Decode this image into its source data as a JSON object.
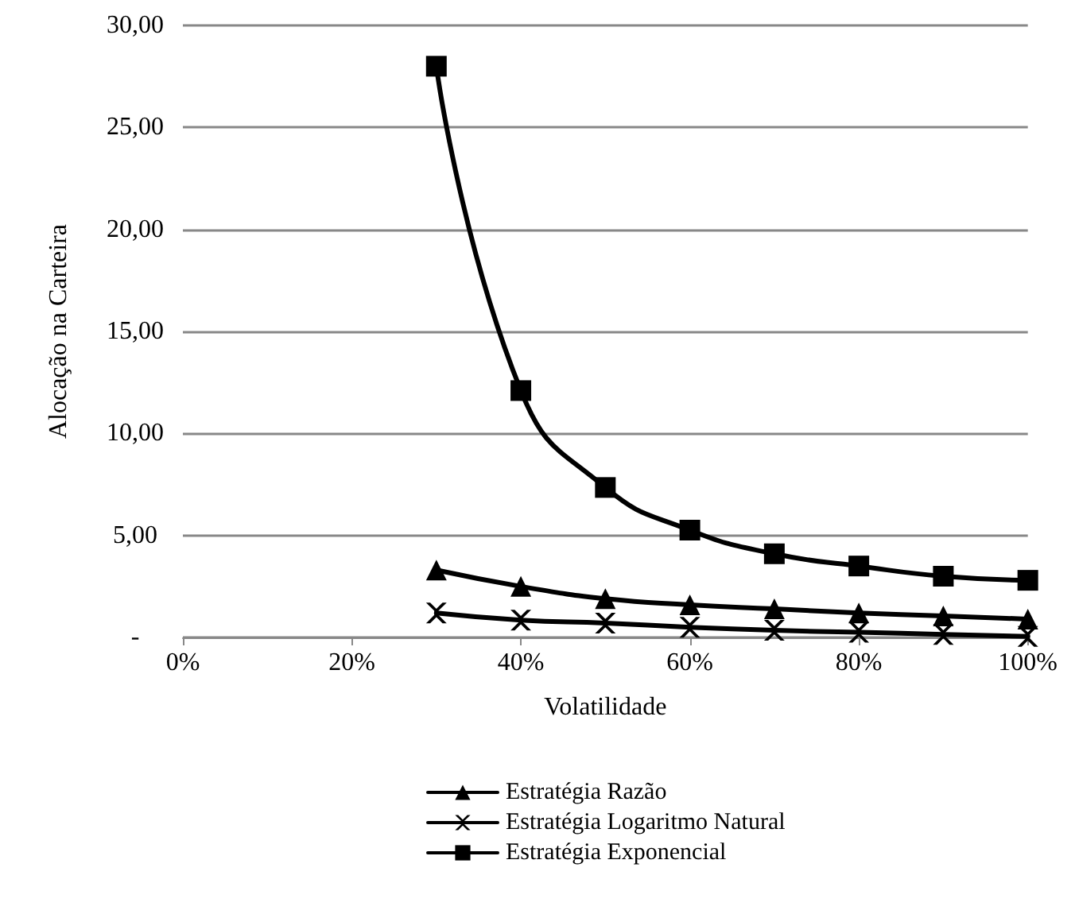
{
  "chart_data": {
    "type": "line",
    "xlabel": "Volatilidade",
    "ylabel": "Alocação na Carteira",
    "x": [
      30,
      40,
      50,
      60,
      70,
      80,
      90,
      100
    ],
    "xlim": [
      0,
      100
    ],
    "xticks": [
      {
        "value": 0,
        "label": "0%"
      },
      {
        "value": 20,
        "label": "20%"
      },
      {
        "value": 40,
        "label": "40%"
      },
      {
        "value": 60,
        "label": "60%"
      },
      {
        "value": 80,
        "label": "80%"
      },
      {
        "value": 100,
        "label": "100%"
      }
    ],
    "ylim": [
      0,
      30
    ],
    "yticks": [
      {
        "value": 0,
        "label": "-"
      },
      {
        "value": 5,
        "label": "5,00"
      },
      {
        "value": 10,
        "label": "10,00"
      },
      {
        "value": 15,
        "label": "15,00"
      },
      {
        "value": 20,
        "label": "20,00"
      },
      {
        "value": 25,
        "label": "25,00"
      },
      {
        "value": 30,
        "label": "30,00"
      }
    ],
    "grid": "y",
    "legend": "bottom",
    "line_style": "solid",
    "series": [
      {
        "name": "Estratégia Razão",
        "color": "#000000",
        "marker": "triangle",
        "values": [
          3.3,
          2.5,
          1.9,
          1.6,
          1.4,
          1.2,
          1.05,
          0.9
        ]
      },
      {
        "name": "Estratégia Logaritmo Natural",
        "color": "#000000",
        "marker": "cross",
        "values": [
          1.2,
          0.85,
          0.7,
          0.5,
          0.35,
          0.25,
          0.15,
          0.05
        ]
      },
      {
        "name": "Estratégia Exponencial",
        "color": "#000000",
        "marker": "square",
        "values": [
          28,
          12.1,
          7.35,
          5.26,
          4.1,
          3.5,
          3.0,
          2.8
        ]
      }
    ]
  }
}
